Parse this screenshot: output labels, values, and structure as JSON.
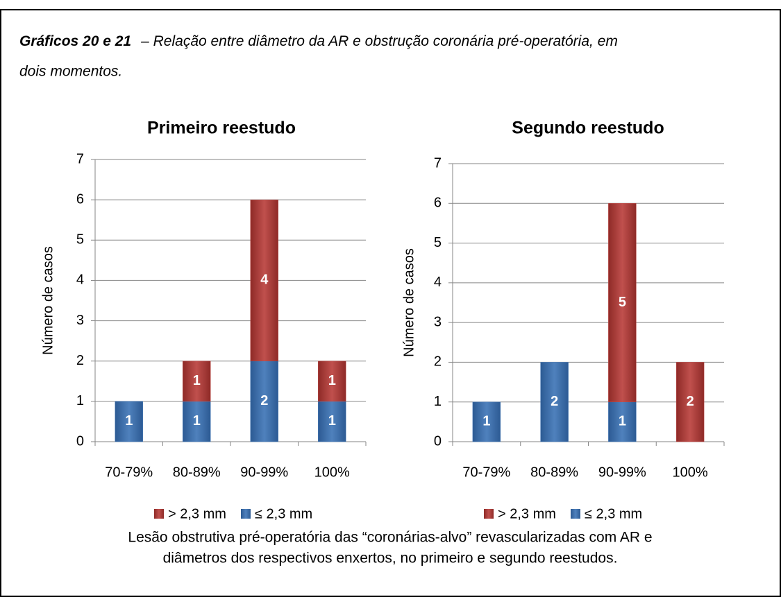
{
  "caption": {
    "label": "Gráficos 20 e 21",
    "lines": [
      "– Relação entre diâmetro da AR e obstrução coronária pré-operatória, em",
      "dois momentos."
    ]
  },
  "chart_data": [
    {
      "type": "stacked_bar",
      "title": "Primeiro reestudo",
      "y_label": "Número de casos",
      "categories": [
        "70-79%",
        "80-89%",
        "90-99%",
        "100%"
      ],
      "series": [
        {
          "name": "≤ 2,3 mm",
          "color": "#4f81bd",
          "values": [
            1,
            1,
            2,
            1
          ]
        },
        {
          "name": "> 2,3 mm",
          "color": "#c0504d",
          "values": [
            0,
            1,
            4,
            1
          ]
        }
      ],
      "ylim": [
        0,
        7
      ],
      "yticks": [
        0,
        1,
        2,
        3,
        4,
        5,
        6,
        7
      ],
      "grid": true,
      "legend": "bottom"
    },
    {
      "type": "stacked_bar",
      "title": "Segundo reestudo",
      "y_label": "Número de casos",
      "categories": [
        "70-79%",
        "80-89%",
        "90-99%",
        "100%"
      ],
      "series": [
        {
          "name": "≤ 2,3 mm",
          "color": "#4f81bd",
          "values": [
            1,
            2,
            1,
            0
          ]
        },
        {
          "name": "> 2,3 mm",
          "color": "#c0504d",
          "values": [
            0,
            0,
            5,
            2
          ]
        }
      ],
      "ylim": [
        0,
        7
      ],
      "yticks": [
        0,
        1,
        2,
        3,
        4,
        5,
        6,
        7
      ],
      "grid": true,
      "legend": "bottom"
    }
  ],
  "note": [
    "Lesão obstrutiva pré-operatória das “coronárias-alvo” revascularizadas com AR e",
    "diâmetros dos respectivos enxertos, no primeiro e segundo reestudos."
  ]
}
